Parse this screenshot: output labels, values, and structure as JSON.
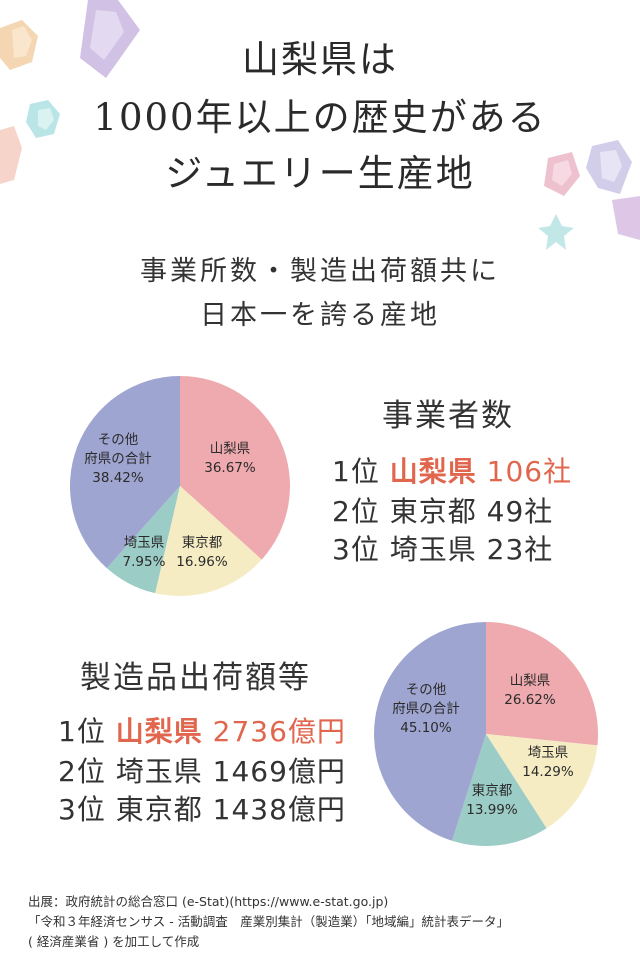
{
  "title_lines": [
    "山梨県は",
    "1000年以上の歴史がある",
    "ジュエリー生産地"
  ],
  "subtitle_lines": [
    "事業所数・製造出荷額共に",
    "日本一を誇る産地"
  ],
  "business": {
    "heading": "事業者数",
    "ranks": [
      {
        "rank": "1位",
        "name": "山梨県",
        "value": "106社"
      },
      {
        "rank": "2位",
        "name": "東京都",
        "value": "49社"
      },
      {
        "rank": "3位",
        "name": "埼玉県",
        "value": "23社"
      }
    ]
  },
  "shipment": {
    "heading": "製造品出荷額等",
    "ranks": [
      {
        "rank": "1位",
        "name": "山梨県",
        "value": "2736億円"
      },
      {
        "rank": "2位",
        "name": "埼玉県",
        "value": "1469億円"
      },
      {
        "rank": "3位",
        "name": "東京都",
        "value": "1438億円"
      }
    ]
  },
  "source_lines": [
    "出展：政府統計の総合窓口 (e-Stat)(https://www.e-stat.go.jp)",
    "「令和３年経済センサス - 活動調査　産業別集計（製造業）「地域編」統計表データ」",
    "( 経済産業省 ) を加工して作成"
  ],
  "colors": {
    "yamanashi": "#eeaaae",
    "tokyo": "#f6ecc4",
    "saitama": "#9cccc6",
    "others": "#9fa5d1",
    "highlight": "#e0664e"
  },
  "chart_data": [
    {
      "type": "pie",
      "slices": [
        {
          "label_lines": [
            "山梨県"
          ],
          "percent_text": "36.67%",
          "value": 36.67,
          "color_key": "yamanashi"
        },
        {
          "label_lines": [
            "東京都"
          ],
          "percent_text": "16.96%",
          "value": 16.96,
          "color_key": "tokyo"
        },
        {
          "label_lines": [
            "埼玉県"
          ],
          "percent_text": "7.95%",
          "value": 7.95,
          "color_key": "saitama"
        },
        {
          "label_lines": [
            "その他",
            "府県の合計"
          ],
          "percent_text": "38.42%",
          "value": 38.42,
          "color_key": "others"
        }
      ]
    },
    {
      "type": "pie",
      "slices": [
        {
          "label_lines": [
            "山梨県"
          ],
          "percent_text": "26.62%",
          "value": 26.62,
          "color_key": "yamanashi"
        },
        {
          "label_lines": [
            "埼玉県"
          ],
          "percent_text": "14.29%",
          "value": 14.29,
          "color_key": "tokyo"
        },
        {
          "label_lines": [
            "東京都"
          ],
          "percent_text": "13.99%",
          "value": 13.99,
          "color_key": "saitama"
        },
        {
          "label_lines": [
            "その他",
            "府県の合計"
          ],
          "percent_text": "45.10%",
          "value": 45.1,
          "color_key": "others"
        }
      ]
    }
  ]
}
